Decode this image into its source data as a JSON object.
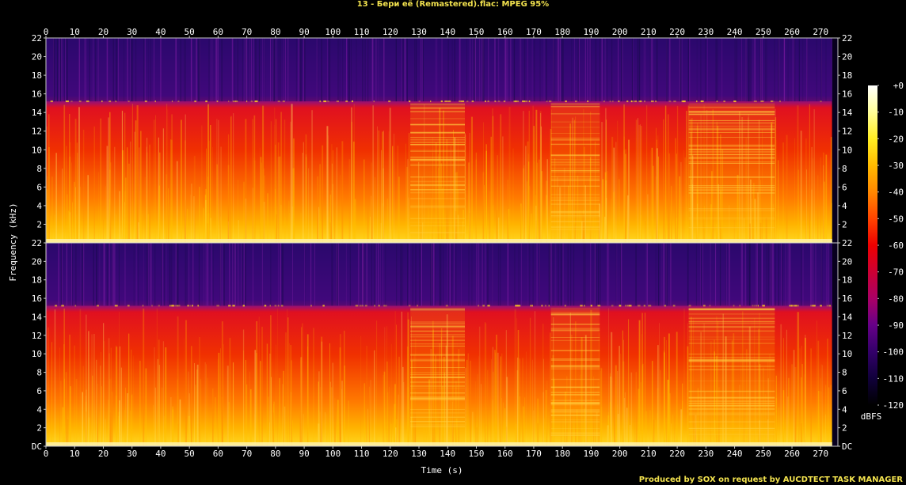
{
  "title": "13 - Бери её (Remastered).flac: MPEG 95%",
  "credit": "Produced by SOX on request by AUCDTECT TASK MANAGER",
  "chart_data": {
    "type": "heatmap",
    "xlabel": "Time (s)",
    "ylabel": "Frequency (kHz)",
    "x_ticks": [
      0,
      10,
      20,
      30,
      40,
      50,
      60,
      70,
      80,
      90,
      100,
      110,
      120,
      130,
      140,
      150,
      160,
      170,
      180,
      190,
      200,
      210,
      220,
      230,
      240,
      250,
      260,
      270
    ],
    "xlim": [
      0,
      276
    ],
    "y_ticks": [
      "DC",
      "2",
      "4",
      "6",
      "8",
      "10",
      "12",
      "14",
      "16",
      "18",
      "20",
      "22"
    ],
    "y_tick_values": [
      0,
      2,
      4,
      6,
      8,
      10,
      12,
      14,
      16,
      18,
      20,
      22
    ],
    "ylim": [
      0,
      22
    ],
    "channels": 2,
    "cutoff_khz": 15.2,
    "audio_end_s": 274,
    "colorbar": {
      "label": "dBFS",
      "ticks": [
        "+0",
        "-10",
        "-20",
        "-30",
        "-40",
        "-50",
        "-60",
        "-70",
        "-80",
        "-90",
        "-100",
        "-110",
        "-120"
      ],
      "tick_values": [
        0,
        -10,
        -20,
        -30,
        -40,
        -50,
        -60,
        -70,
        -80,
        -90,
        -100,
        -110,
        -120
      ],
      "colors": [
        "#ffffff",
        "#ffff99",
        "#ffee22",
        "#ffbb00",
        "#ff8800",
        "#ff4400",
        "#ee0000",
        "#cc0033",
        "#aa0066",
        "#660088",
        "#33006a",
        "#10003a",
        "#000000"
      ]
    },
    "loud_sections_s": [
      [
        127,
        146
      ],
      [
        176,
        193
      ],
      [
        224,
        254
      ]
    ]
  }
}
